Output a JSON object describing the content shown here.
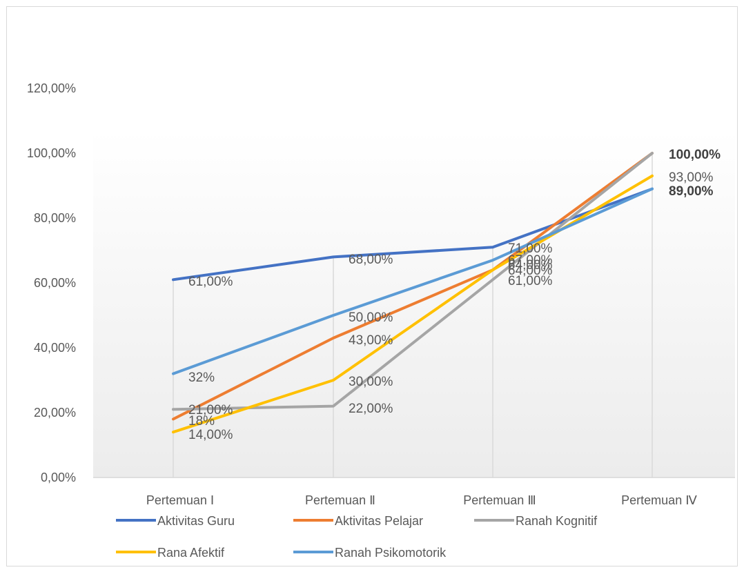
{
  "chart_data": {
    "type": "line",
    "categories": [
      "Pertemuan Ⅰ",
      "Pertemuan Ⅱ",
      "Pertemuan Ⅲ",
      "Pertemuan Ⅳ"
    ],
    "ylim": [
      0,
      120
    ],
    "yticks": [
      "0,00%",
      "20,00%",
      "40,00%",
      "60,00%",
      "80,00%",
      "100,00%",
      "120,00%"
    ],
    "grid": false,
    "legend_position": "bottom",
    "series": [
      {
        "name": "Aktivitas Guru",
        "color": "#4472C4",
        "values": [
          61,
          68,
          71,
          89
        ],
        "labels": [
          "61,00%",
          "68,00%",
          "71,00%",
          "89,00%"
        ]
      },
      {
        "name": "Aktivitas Pelajar",
        "color": "#ED7D31",
        "values": [
          18,
          43,
          64,
          100
        ],
        "labels": [
          "18%",
          "43,00%",
          "64,00%",
          "100,00%"
        ]
      },
      {
        "name": "Ranah Kognitif",
        "color": "#A5A5A5",
        "values": [
          21,
          22,
          61,
          100
        ],
        "labels": [
          "21,00%",
          "22,00%",
          "61,00%",
          "100,00%"
        ]
      },
      {
        "name": "Rana Afektif",
        "color": "#FFC000",
        "values": [
          14,
          30,
          64,
          93
        ],
        "labels": [
          "14,00%",
          "30,00%",
          "64,00%",
          "93,00%"
        ]
      },
      {
        "name": "Ranah Psikomotorik",
        "color": "#5B9BD5",
        "values": [
          32,
          50,
          67,
          89
        ],
        "labels": [
          "32%",
          "50,00%",
          "67,00%",
          "89,00%"
        ]
      }
    ]
  }
}
